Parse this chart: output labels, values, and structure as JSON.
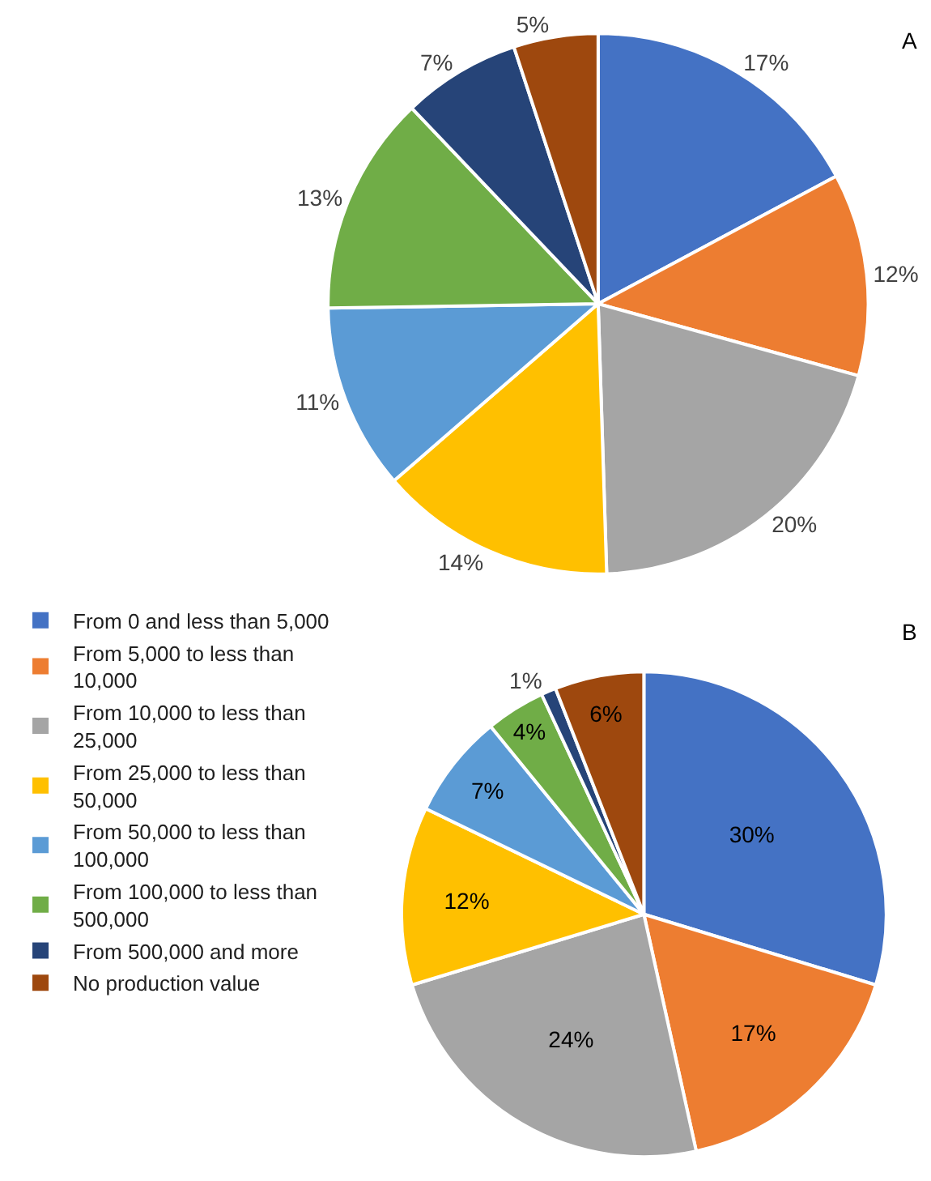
{
  "chart_data": [
    {
      "type": "pie",
      "title": "A",
      "categories": [
        null,
        null,
        null,
        null,
        null,
        null,
        null,
        null
      ],
      "values": [
        17,
        12,
        20,
        14,
        11,
        13,
        7,
        5
      ],
      "value_labels": [
        "17%",
        "12%",
        "20%",
        "14%",
        "11%",
        "13%",
        "7%",
        "5%"
      ],
      "colors": [
        "#4472c4",
        "#ed7d31",
        "#a5a5a5",
        "#ffc000",
        "#5b9bd5",
        "#70ad47",
        "#264478",
        "#9e480e"
      ]
    },
    {
      "type": "pie",
      "title": "B",
      "categories": [
        "From 0 and less than 5,000",
        "From 5,000 to less than 10,000",
        "From 10,000 to less than 25,000",
        "From 25,000 to less than 50,000",
        "From 50,000 to less than 100,000",
        "From 100,000 to less than 500,000",
        "From 500,000 and more",
        "No production value"
      ],
      "values": [
        30,
        17,
        24,
        12,
        7,
        4,
        1,
        6
      ],
      "value_labels": [
        "30%",
        "17%",
        "24%",
        "12%",
        "7%",
        "4%",
        "1%",
        "6%"
      ],
      "colors": [
        "#4472c4",
        "#ed7d31",
        "#a5a5a5",
        "#ffc000",
        "#5b9bd5",
        "#70ad47",
        "#264478",
        "#9e480e"
      ],
      "legend": "left"
    }
  ]
}
